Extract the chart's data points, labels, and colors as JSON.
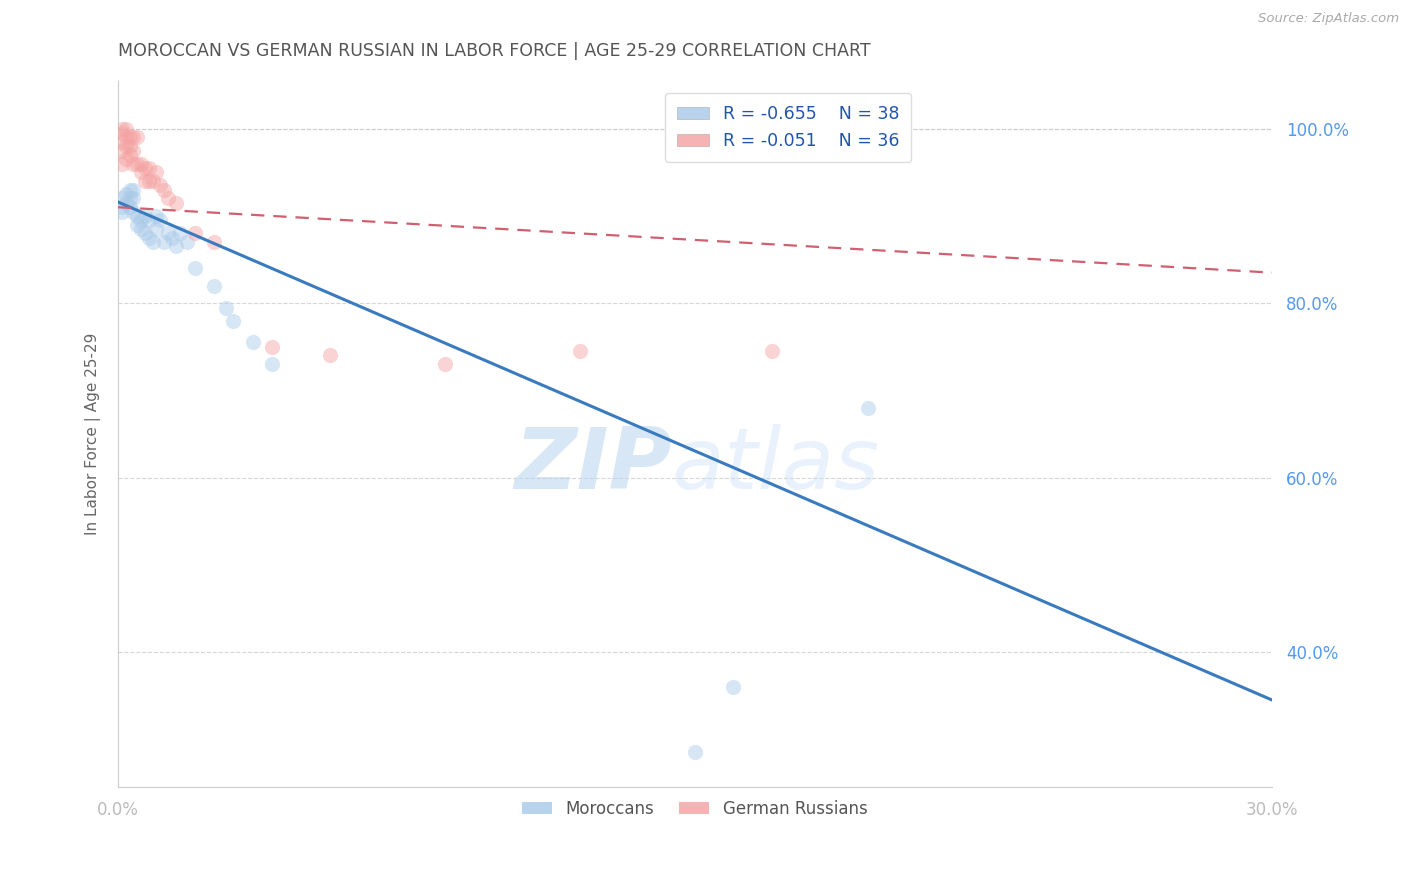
{
  "title": "MOROCCAN VS GERMAN RUSSIAN IN LABOR FORCE | AGE 25-29 CORRELATION CHART",
  "source": "Source: ZipAtlas.com",
  "ylabel": "In Labor Force | Age 25-29",
  "xlim": [
    0.0,
    0.3
  ],
  "ylim": [
    0.245,
    1.055
  ],
  "right_yticks": [
    0.4,
    0.6,
    0.8,
    1.0
  ],
  "right_yticklabels": [
    "40.0%",
    "60.0%",
    "80.0%",
    "100.0%"
  ],
  "xticks": [
    0.0,
    0.05,
    0.1,
    0.15,
    0.2,
    0.25,
    0.3
  ],
  "xticklabels": [
    "0.0%",
    "",
    "",
    "",
    "",
    "",
    "30.0%"
  ],
  "blue_scatter_x": [
    0.001,
    0.001,
    0.001,
    0.002,
    0.002,
    0.003,
    0.003,
    0.003,
    0.004,
    0.004,
    0.004,
    0.005,
    0.005,
    0.006,
    0.006,
    0.007,
    0.007,
    0.008,
    0.008,
    0.009,
    0.01,
    0.01,
    0.011,
    0.012,
    0.013,
    0.014,
    0.015,
    0.016,
    0.018,
    0.02,
    0.025,
    0.028,
    0.03,
    0.035,
    0.04,
    0.16,
    0.195,
    0.15
  ],
  "blue_scatter_y": [
    0.92,
    0.91,
    0.905,
    0.925,
    0.915,
    0.93,
    0.92,
    0.91,
    0.93,
    0.92,
    0.905,
    0.9,
    0.89,
    0.895,
    0.885,
    0.9,
    0.88,
    0.895,
    0.875,
    0.87,
    0.9,
    0.885,
    0.895,
    0.87,
    0.88,
    0.875,
    0.865,
    0.88,
    0.87,
    0.84,
    0.82,
    0.795,
    0.78,
    0.755,
    0.73,
    0.36,
    0.68,
    0.285
  ],
  "pink_scatter_x": [
    0.001,
    0.001,
    0.001,
    0.001,
    0.001,
    0.002,
    0.002,
    0.002,
    0.002,
    0.003,
    0.003,
    0.003,
    0.004,
    0.004,
    0.004,
    0.005,
    0.005,
    0.006,
    0.006,
    0.007,
    0.007,
    0.008,
    0.008,
    0.009,
    0.01,
    0.011,
    0.012,
    0.013,
    0.015,
    0.02,
    0.025,
    0.04,
    0.055,
    0.085,
    0.12,
    0.17
  ],
  "pink_scatter_y": [
    1.0,
    0.995,
    0.985,
    0.975,
    0.96,
    1.0,
    0.99,
    0.98,
    0.965,
    0.99,
    0.98,
    0.97,
    0.99,
    0.975,
    0.96,
    0.99,
    0.96,
    0.96,
    0.95,
    0.955,
    0.94,
    0.955,
    0.94,
    0.94,
    0.95,
    0.935,
    0.93,
    0.92,
    0.915,
    0.88,
    0.87,
    0.75,
    0.74,
    0.73,
    0.745,
    0.745
  ],
  "blue_line_x0": 0.0,
  "blue_line_y0": 0.916,
  "blue_line_x1": 0.3,
  "blue_line_y1": 0.345,
  "pink_line_x0": 0.0,
  "pink_line_y0": 0.91,
  "pink_line_x1": 0.3,
  "pink_line_y1": 0.835,
  "blue_color": "#a8c8e8",
  "pink_color": "#f4a0a0",
  "blue_line_color": "#3a7abf",
  "pink_line_color": "#d06070",
  "legend_R_blue": "R = -0.655",
  "legend_N_blue": "N = 38",
  "legend_R_pink": "R = -0.051",
  "legend_N_pink": "N = 36",
  "legend_label_blue": "Moroccans",
  "legend_label_pink": "German Russians",
  "watermark_zip": "ZIP",
  "watermark_atlas": "atlas",
  "background_color": "#ffffff",
  "grid_color": "#cccccc",
  "title_color": "#555555",
  "source_color": "#aaaaaa",
  "axis_label_color": "#666666",
  "tick_color": "#bbbbbb",
  "scatter_size": 120,
  "scatter_alpha": 0.45
}
